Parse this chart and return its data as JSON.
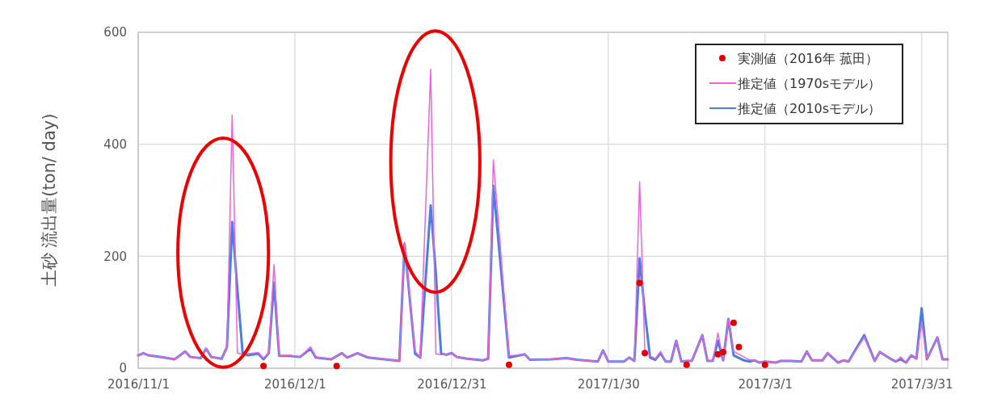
{
  "chart_data": {
    "type": "line",
    "ylabel": "土砂 流出量(ton/ day)",
    "xlim": [
      "2016-11-01",
      "2017-04-05"
    ],
    "xticks": [
      {
        "value": "2016-11-01",
        "label": "2016/11/1"
      },
      {
        "value": "2016-12-01",
        "label": "2016/12/1"
      },
      {
        "value": "2016-12-31",
        "label": "2016/12/31"
      },
      {
        "value": "2017-01-30",
        "label": "2017/1/30"
      },
      {
        "value": "2017-03-01",
        "label": "2017/3/1"
      },
      {
        "value": "2017-03-31",
        "label": "2017/3/31"
      }
    ],
    "ylim": [
      0,
      600
    ],
    "yticks": [
      0,
      200,
      400,
      600
    ],
    "grid": true,
    "legend": "top right",
    "line_style": "solid",
    "series": [
      {
        "name": "推定値（1970sモデル）",
        "color": "#f060e0",
        "x": [
          "2016-11-01",
          "2016-11-02",
          "2016-11-03",
          "2016-11-06",
          "2016-11-08",
          "2016-11-10",
          "2016-11-11",
          "2016-11-13",
          "2016-11-14",
          "2016-11-15",
          "2016-11-17",
          "2016-11-18",
          "2016-11-19",
          "2016-11-20",
          "2016-11-21",
          "2016-11-22",
          "2016-11-24",
          "2016-11-25",
          "2016-11-26",
          "2016-11-27",
          "2016-11-28",
          "2016-11-30",
          "2016-12-02",
          "2016-12-04",
          "2016-12-05",
          "2016-12-08",
          "2016-12-10",
          "2016-12-11",
          "2016-12-13",
          "2016-12-15",
          "2016-12-20",
          "2016-12-21",
          "2016-12-22",
          "2016-12-24",
          "2016-12-25",
          "2016-12-27",
          "2016-12-28",
          "2016-12-29",
          "2016-12-30",
          "2016-12-31",
          "2017-01-01",
          "2017-01-03",
          "2017-01-06",
          "2017-01-07",
          "2017-01-08",
          "2017-01-11",
          "2017-01-14",
          "2017-01-15",
          "2017-01-19",
          "2017-01-22",
          "2017-01-24",
          "2017-01-28",
          "2017-01-29",
          "2017-01-30",
          "2017-02-02",
          "2017-02-03",
          "2017-02-04",
          "2017-02-05",
          "2017-02-06",
          "2017-02-07",
          "2017-02-08",
          "2017-02-09",
          "2017-02-10",
          "2017-02-11",
          "2017-02-12",
          "2017-02-13",
          "2017-02-14",
          "2017-02-15",
          "2017-02-17",
          "2017-02-18",
          "2017-02-19",
          "2017-02-20",
          "2017-02-21",
          "2017-02-22",
          "2017-02-23",
          "2017-02-25",
          "2017-02-26",
          "2017-02-27",
          "2017-02-28",
          "2017-03-01",
          "2017-03-03",
          "2017-03-04",
          "2017-03-06",
          "2017-03-08",
          "2017-03-09",
          "2017-03-10",
          "2017-03-12",
          "2017-03-13",
          "2017-03-15",
          "2017-03-16",
          "2017-03-17",
          "2017-03-20",
          "2017-03-22",
          "2017-03-23",
          "2017-03-25",
          "2017-03-26",
          "2017-03-27",
          "2017-03-28",
          "2017-03-29",
          "2017-03-30",
          "2017-03-31",
          "2017-04-01",
          "2017-04-03",
          "2017-04-04",
          "2017-04-05"
        ],
        "values": [
          23,
          27,
          23,
          19,
          16,
          30,
          20,
          18,
          35,
          20,
          17,
          38,
          452,
          27,
          25,
          26,
          28,
          18,
          27,
          185,
          22,
          23,
          20,
          38,
          20,
          16,
          27,
          19,
          27,
          20,
          14,
          13,
          225,
          30,
          20,
          534,
          26,
          24,
          24,
          27,
          20,
          17,
          14,
          17,
          372,
          22,
          25,
          15,
          16,
          18,
          15,
          12,
          32,
          12,
          12,
          19,
          13,
          333,
          30,
          22,
          17,
          30,
          12,
          12,
          49,
          12,
          13,
          13,
          59,
          13,
          13,
          63,
          14,
          88,
          30,
          20,
          15,
          14,
          10,
          12,
          10,
          13,
          13,
          12,
          30,
          14,
          14,
          27,
          10,
          14,
          12,
          55,
          13,
          29,
          17,
          12,
          20,
          10,
          23,
          17,
          81,
          16,
          55,
          16,
          16
        ]
      },
      {
        "name": "推定値（2010sモデル）",
        "color": "#4a7fe0",
        "x": [
          "2016-11-01",
          "2016-11-02",
          "2016-11-03",
          "2016-11-06",
          "2016-11-08",
          "2016-11-10",
          "2016-11-11",
          "2016-11-13",
          "2016-11-14",
          "2016-11-15",
          "2016-11-17",
          "2016-11-18",
          "2016-11-19",
          "2016-11-20",
          "2016-11-21",
          "2016-11-22",
          "2016-11-24",
          "2016-11-25",
          "2016-11-26",
          "2016-11-27",
          "2016-11-28",
          "2016-11-30",
          "2016-12-02",
          "2016-12-04",
          "2016-12-05",
          "2016-12-08",
          "2016-12-10",
          "2016-12-11",
          "2016-12-13",
          "2016-12-15",
          "2016-12-20",
          "2016-12-21",
          "2016-12-22",
          "2016-12-24",
          "2016-12-25",
          "2016-12-27",
          "2016-12-28",
          "2016-12-29",
          "2016-12-30",
          "2016-12-31",
          "2017-01-01",
          "2017-01-03",
          "2017-01-06",
          "2017-01-07",
          "2017-01-08",
          "2017-01-11",
          "2017-01-14",
          "2017-01-15",
          "2017-01-19",
          "2017-01-22",
          "2017-01-24",
          "2017-01-28",
          "2017-01-29",
          "2017-01-30",
          "2017-02-02",
          "2017-02-03",
          "2017-02-04",
          "2017-02-05",
          "2017-02-06",
          "2017-02-07",
          "2017-02-08",
          "2017-02-09",
          "2017-02-10",
          "2017-02-11",
          "2017-02-12",
          "2017-02-13",
          "2017-02-14",
          "2017-02-15",
          "2017-02-17",
          "2017-02-18",
          "2017-02-19",
          "2017-02-20",
          "2017-02-21",
          "2017-02-22",
          "2017-02-23",
          "2017-02-25",
          "2017-02-26",
          "2017-02-27",
          "2017-02-28",
          "2017-03-01",
          "2017-03-03",
          "2017-03-04",
          "2017-03-06",
          "2017-03-08",
          "2017-03-09",
          "2017-03-10",
          "2017-03-12",
          "2017-03-13",
          "2017-03-15",
          "2017-03-16",
          "2017-03-17",
          "2017-03-20",
          "2017-03-22",
          "2017-03-23",
          "2017-03-25",
          "2017-03-26",
          "2017-03-27",
          "2017-03-28",
          "2017-03-29",
          "2017-03-30",
          "2017-03-31",
          "2017-04-01",
          "2017-04-03",
          "2017-04-04",
          "2017-04-05"
        ],
        "values": [
          23,
          27,
          23,
          19,
          16,
          30,
          20,
          18,
          35,
          20,
          17,
          38,
          261,
          140,
          27,
          23,
          26,
          16,
          27,
          153,
          22,
          22,
          20,
          35,
          19,
          16,
          27,
          19,
          27,
          19,
          14,
          13,
          222,
          26,
          19,
          291,
          168,
          26,
          24,
          27,
          20,
          17,
          14,
          17,
          326,
          19,
          25,
          15,
          16,
          18,
          15,
          12,
          32,
          12,
          12,
          19,
          13,
          196,
          100,
          19,
          15,
          27,
          12,
          12,
          49,
          12,
          13,
          13,
          59,
          13,
          13,
          49,
          14,
          88,
          23,
          14,
          12,
          14,
          10,
          12,
          10,
          13,
          13,
          12,
          30,
          14,
          14,
          27,
          10,
          14,
          12,
          59,
          13,
          29,
          17,
          12,
          16,
          10,
          23,
          17,
          107,
          16,
          55,
          16,
          16
        ]
      },
      {
        "name": "実測値（2016年 菰田）",
        "type": "scatter",
        "marker": "circle",
        "color": "#e00000",
        "x": [
          "2016-11-25",
          "2016-12-09",
          "2017-01-11",
          "2017-02-05",
          "2017-02-06",
          "2017-02-14",
          "2017-02-20",
          "2017-02-21",
          "2017-02-23",
          "2017-02-24",
          "2017-03-01"
        ],
        "values": [
          4,
          4,
          6,
          152,
          27,
          6,
          25,
          29,
          81,
          38,
          6
        ]
      }
    ]
  }
}
